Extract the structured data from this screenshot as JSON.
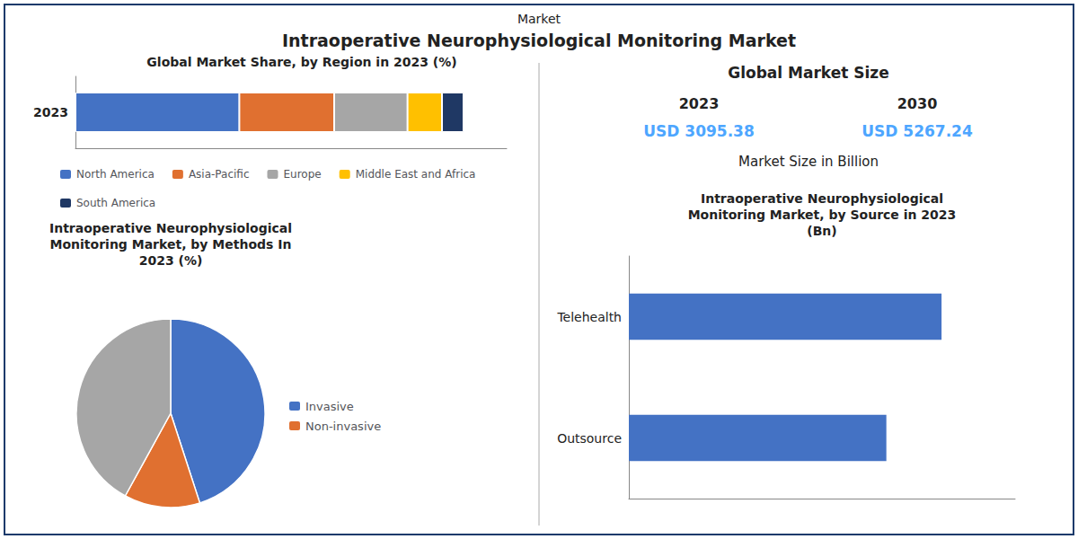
{
  "title": "Intraoperative Neurophysiological Monitoring Market",
  "subtitle": "Market",
  "chart_data": [
    {
      "type": "bar",
      "title": "Global Market Share, by Region in 2023 (%)",
      "orientation": "horizontal",
      "stacked": true,
      "categories": [
        "2023"
      ],
      "series": [
        {
          "name": "North America",
          "color": "#4472c4",
          "values": [
            38
          ]
        },
        {
          "name": "Asia-Pacific",
          "color": "#e07030",
          "values": [
            22
          ]
        },
        {
          "name": "Europe",
          "color": "#a6a6a6",
          "values": [
            17
          ]
        },
        {
          "name": "Middle East and Africa",
          "color": "#ffc000",
          "values": [
            8
          ]
        },
        {
          "name": "South America",
          "color": "#1f3864",
          "values": [
            5
          ]
        }
      ],
      "xlim": [
        0,
        100
      ],
      "tick_labels": "y",
      "grid": false,
      "legend": "bottom"
    },
    {
      "type": "text",
      "title": "Global Market Size",
      "categories": [
        "2023",
        "2030"
      ],
      "annotations": [
        "USD 3095.38",
        "USD 5267.24"
      ],
      "subtitle": "Market Size in Billion",
      "color": "#4da6ff"
    },
    {
      "type": "pie",
      "title": "Intraoperative Neurophysiological\nMonitoring Market, by Methods In\n2023 (%)",
      "categories": [
        "Invasive",
        "Non-invasive",
        null
      ],
      "values": [
        45,
        13,
        42
      ],
      "colors": [
        "#4472c4",
        "#e07030",
        "#a6a6a6"
      ],
      "legend": "right"
    },
    {
      "type": "bar",
      "title": "Intraoperative Neurophysiological\nMonitoring Market, by Source in 2023\n(Bn)",
      "orientation": "horizontal",
      "categories": [
        "Telehealth",
        "Outsource"
      ],
      "values": [
        1700,
        1400
      ],
      "color": "#4472c4",
      "xlim": [
        0,
        2100
      ],
      "tick_labels": "y",
      "grid": false
    }
  ]
}
